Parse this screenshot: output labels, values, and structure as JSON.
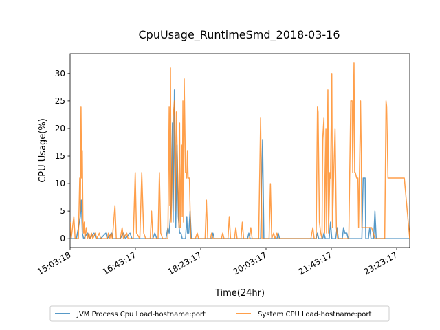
{
  "chart_data": {
    "type": "line",
    "title": "CpuUsage_RuntimeSmd_2018-03-16",
    "xlabel": "Time(24hr)",
    "ylabel": "CPU Usage(%)",
    "xlim": [
      "15:03:18",
      "23:43:17"
    ],
    "ylim": [
      -1.6,
      33.6
    ],
    "yticks": [
      0,
      5,
      10,
      15,
      20,
      25,
      30
    ],
    "xticks": [
      "15:03:18",
      "16:43:17",
      "18:23:17",
      "20:03:17",
      "21:43:17",
      "23:23:17"
    ],
    "grid": false,
    "legend_position": "bottom-center",
    "series": [
      {
        "name": "JVM Process Cpu Load-hostname:port",
        "color": "#1f77b4",
        "points": [
          [
            "15:03:18",
            0
          ],
          [
            "15:13:00",
            0
          ],
          [
            "15:19:00",
            4
          ],
          [
            "15:20:30",
            7
          ],
          [
            "15:22:00",
            1
          ],
          [
            "15:24:00",
            0
          ],
          [
            "15:30:00",
            1
          ],
          [
            "15:33:00",
            0
          ],
          [
            "15:40:00",
            1
          ],
          [
            "15:43:00",
            0
          ],
          [
            "15:50:00",
            0
          ],
          [
            "15:58:00",
            1
          ],
          [
            "16:00:00",
            0
          ],
          [
            "16:07:00",
            1
          ],
          [
            "16:09:00",
            0
          ],
          [
            "16:20:00",
            0
          ],
          [
            "16:25:00",
            1
          ],
          [
            "16:28:00",
            0
          ],
          [
            "16:35:00",
            1
          ],
          [
            "16:38:00",
            0
          ],
          [
            "17:10:00",
            0
          ],
          [
            "17:13:00",
            1
          ],
          [
            "17:16:00",
            0
          ],
          [
            "17:30:00",
            0
          ],
          [
            "17:33:00",
            2
          ],
          [
            "17:35:00",
            1
          ],
          [
            "17:38:00",
            6
          ],
          [
            "17:40:00",
            21
          ],
          [
            "17:41:00",
            3
          ],
          [
            "17:43:00",
            27
          ],
          [
            "17:45:00",
            2
          ],
          [
            "17:47:00",
            17
          ],
          [
            "17:49:00",
            4
          ],
          [
            "17:51:00",
            1
          ],
          [
            "17:53:00",
            1
          ],
          [
            "17:55:00",
            0
          ],
          [
            "18:00:00",
            0
          ],
          [
            "18:02:00",
            4
          ],
          [
            "18:03:00",
            1
          ],
          [
            "18:05:00",
            1
          ],
          [
            "18:07:00",
            5
          ],
          [
            "18:09:00",
            0
          ],
          [
            "18:40:00",
            0
          ],
          [
            "18:42:00",
            1
          ],
          [
            "18:44:00",
            0
          ],
          [
            "19:35:00",
            0
          ],
          [
            "19:37:00",
            1
          ],
          [
            "19:39:00",
            0
          ],
          [
            "19:55:00",
            0
          ],
          [
            "19:58:00",
            18
          ],
          [
            "20:00:00",
            0
          ],
          [
            "20:20:00",
            0
          ],
          [
            "20:22:00",
            1
          ],
          [
            "20:24:00",
            0
          ],
          [
            "21:20:00",
            0
          ],
          [
            "21:22:00",
            1
          ],
          [
            "21:24:00",
            0
          ],
          [
            "21:30:00",
            0
          ],
          [
            "21:32:00",
            1
          ],
          [
            "21:34:00",
            0
          ],
          [
            "21:40:00",
            0
          ],
          [
            "21:42:00",
            3
          ],
          [
            "21:44:00",
            0
          ],
          [
            "21:50:00",
            0
          ],
          [
            "21:52:00",
            2
          ],
          [
            "21:54:00",
            0
          ],
          [
            "22:00:00",
            0
          ],
          [
            "22:02:00",
            2
          ],
          [
            "22:04:00",
            1
          ],
          [
            "22:07:00",
            1
          ],
          [
            "22:09:00",
            0
          ],
          [
            "22:30:00",
            0
          ],
          [
            "22:32:00",
            11
          ],
          [
            "22:33:00",
            11
          ],
          [
            "22:35:00",
            11
          ],
          [
            "22:36:00",
            0
          ],
          [
            "22:40:00",
            0
          ],
          [
            "22:42:00",
            2
          ],
          [
            "22:44:00",
            0
          ],
          [
            "22:48:00",
            0
          ],
          [
            "22:50:00",
            5
          ],
          [
            "22:52:00",
            0
          ],
          [
            "23:43:17",
            0
          ]
        ]
      },
      {
        "name": "System CPU Load-hostname:port",
        "color": "#ff7f0e",
        "points": [
          [
            "15:03:18",
            3
          ],
          [
            "15:05:00",
            0
          ],
          [
            "15:07:00",
            2
          ],
          [
            "15:09:00",
            4
          ],
          [
            "15:11:00",
            0
          ],
          [
            "15:16:00",
            0
          ],
          [
            "15:18:00",
            11
          ],
          [
            "15:19:00",
            5
          ],
          [
            "15:20:00",
            24
          ],
          [
            "15:21:00",
            11
          ],
          [
            "15:22:00",
            16
          ],
          [
            "15:23:00",
            3
          ],
          [
            "15:24:00",
            1
          ],
          [
            "15:25:00",
            3
          ],
          [
            "15:26:00",
            0
          ],
          [
            "15:28:00",
            2
          ],
          [
            "15:30:00",
            0
          ],
          [
            "15:32:00",
            1
          ],
          [
            "15:34:00",
            0
          ],
          [
            "15:36:00",
            1
          ],
          [
            "15:38:00",
            0
          ],
          [
            "15:42:00",
            1
          ],
          [
            "15:44:00",
            0
          ],
          [
            "15:48:00",
            1
          ],
          [
            "15:50:00",
            0
          ],
          [
            "16:00:00",
            0
          ],
          [
            "16:02:00",
            1
          ],
          [
            "16:04:00",
            0
          ],
          [
            "16:06:00",
            1
          ],
          [
            "16:08:00",
            0
          ],
          [
            "16:12:00",
            6
          ],
          [
            "16:14:00",
            0
          ],
          [
            "16:20:00",
            0
          ],
          [
            "16:23:00",
            2
          ],
          [
            "16:25:00",
            0
          ],
          [
            "16:30:00",
            1
          ],
          [
            "16:32:00",
            0
          ],
          [
            "16:40:00",
            0
          ],
          [
            "16:43:00",
            12
          ],
          [
            "16:45:00",
            1
          ],
          [
            "16:50:00",
            0
          ],
          [
            "16:53:00",
            12
          ],
          [
            "16:56:00",
            1
          ],
          [
            "16:59:00",
            0
          ],
          [
            "17:06:00",
            0
          ],
          [
            "17:08:00",
            5
          ],
          [
            "17:10:00",
            0
          ],
          [
            "17:18:00",
            0
          ],
          [
            "17:20:00",
            12
          ],
          [
            "17:22:00",
            1
          ],
          [
            "17:25:00",
            0
          ],
          [
            "17:33:00",
            0
          ],
          [
            "17:35:00",
            24
          ],
          [
            "17:36:00",
            6
          ],
          [
            "17:37:00",
            31
          ],
          [
            "17:38:00",
            3
          ],
          [
            "17:40:00",
            14
          ],
          [
            "17:41:00",
            22
          ],
          [
            "17:43:00",
            25
          ],
          [
            "17:44:00",
            5
          ],
          [
            "17:46:00",
            23
          ],
          [
            "17:48:00",
            12
          ],
          [
            "17:50:00",
            2
          ],
          [
            "17:51:00",
            21
          ],
          [
            "17:52:00",
            2
          ],
          [
            "17:54:00",
            17
          ],
          [
            "17:55:00",
            4
          ],
          [
            "17:56:00",
            25
          ],
          [
            "17:57:00",
            3
          ],
          [
            "17:58:00",
            29
          ],
          [
            "18:00:00",
            12
          ],
          [
            "18:01:00",
            12
          ],
          [
            "18:02:00",
            11
          ],
          [
            "18:03:00",
            16
          ],
          [
            "18:04:00",
            11
          ],
          [
            "18:06:00",
            11
          ],
          [
            "18:08:00",
            0
          ],
          [
            "18:15:00",
            0
          ],
          [
            "18:18:00",
            1
          ],
          [
            "18:20:00",
            0
          ],
          [
            "18:30:00",
            0
          ],
          [
            "18:32:00",
            7
          ],
          [
            "18:34:00",
            0
          ],
          [
            "18:38:00",
            0
          ],
          [
            "18:40:00",
            1
          ],
          [
            "18:42:00",
            0
          ],
          [
            "18:55:00",
            0
          ],
          [
            "18:57:00",
            1
          ],
          [
            "18:59:00",
            0
          ],
          [
            "19:05:00",
            0
          ],
          [
            "19:07:00",
            4
          ],
          [
            "19:09:00",
            0
          ],
          [
            "19:15:00",
            0
          ],
          [
            "19:17:00",
            2
          ],
          [
            "19:19:00",
            0
          ],
          [
            "19:25:00",
            0
          ],
          [
            "19:27:00",
            3
          ],
          [
            "19:29:00",
            0
          ],
          [
            "19:38:00",
            0
          ],
          [
            "19:40:00",
            2
          ],
          [
            "19:42:00",
            0
          ],
          [
            "19:52:00",
            0
          ],
          [
            "19:55:00",
            22
          ],
          [
            "19:57:00",
            0
          ],
          [
            "20:08:00",
            0
          ],
          [
            "20:10:00",
            10
          ],
          [
            "20:12:00",
            0
          ],
          [
            "20:15:00",
            1
          ],
          [
            "20:17:00",
            0
          ],
          [
            "20:20:00",
            1
          ],
          [
            "20:22:00",
            0
          ],
          [
            "21:12:00",
            0
          ],
          [
            "21:15:00",
            2
          ],
          [
            "21:17:00",
            0
          ],
          [
            "21:20:00",
            0
          ],
          [
            "21:22:00",
            24
          ],
          [
            "21:23:00",
            23
          ],
          [
            "21:25:00",
            3
          ],
          [
            "21:27:00",
            1
          ],
          [
            "21:29:00",
            0
          ],
          [
            "21:30:00",
            18
          ],
          [
            "21:32:00",
            22
          ],
          [
            "21:33:00",
            1
          ],
          [
            "21:35:00",
            20
          ],
          [
            "21:36:00",
            1
          ],
          [
            "21:38:00",
            27
          ],
          [
            "21:39:00",
            1
          ],
          [
            "21:41:00",
            12
          ],
          [
            "21:42:00",
            11
          ],
          [
            "21:44:00",
            30
          ],
          [
            "21:45:00",
            2
          ],
          [
            "21:47:00",
            12
          ],
          [
            "21:49:00",
            20
          ],
          [
            "21:51:00",
            2
          ],
          [
            "21:53:00",
            0
          ],
          [
            "22:10:00",
            0
          ],
          [
            "22:13:00",
            25
          ],
          [
            "22:15:00",
            25
          ],
          [
            "22:16:00",
            12
          ],
          [
            "22:18:00",
            32
          ],
          [
            "22:19:00",
            12
          ],
          [
            "22:20:00",
            12
          ],
          [
            "22:22:00",
            11
          ],
          [
            "22:24:00",
            11
          ],
          [
            "22:25:00",
            2
          ],
          [
            "22:28:00",
            25
          ],
          [
            "22:29:00",
            16
          ],
          [
            "22:30:00",
            2
          ],
          [
            "22:34:00",
            2
          ],
          [
            "22:45:00",
            2
          ],
          [
            "22:50:00",
            0
          ],
          [
            "22:55:00",
            0
          ],
          [
            "23:05:00",
            0
          ],
          [
            "23:07:00",
            25
          ],
          [
            "23:08:00",
            24
          ],
          [
            "23:10:00",
            11
          ],
          [
            "23:13:00",
            11
          ],
          [
            "23:15:00",
            11
          ],
          [
            "23:17:00",
            11
          ],
          [
            "23:19:00",
            11
          ],
          [
            "23:21:00",
            11
          ],
          [
            "23:23:00",
            11
          ],
          [
            "23:25:00",
            11
          ],
          [
            "23:27:00",
            11
          ],
          [
            "23:29:00",
            11
          ],
          [
            "23:31:00",
            11
          ],
          [
            "23:35:00",
            11
          ],
          [
            "23:43:17",
            0
          ]
        ]
      }
    ]
  }
}
